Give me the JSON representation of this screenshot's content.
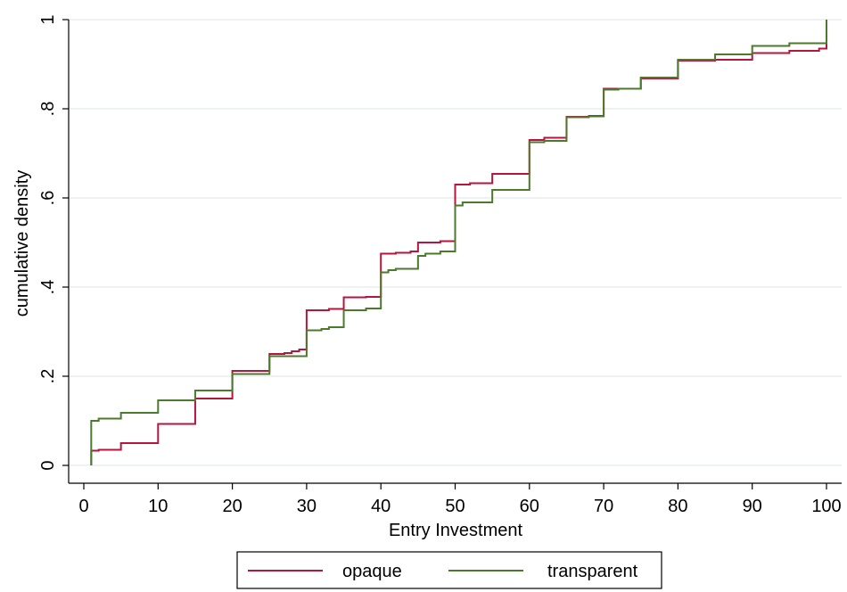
{
  "chart_data": {
    "type": "line",
    "title": "",
    "xlabel": "Entry Investment",
    "ylabel": "cumulative density",
    "xlim": [
      0,
      100
    ],
    "ylim": [
      0,
      1
    ],
    "x_ticks": [
      0,
      10,
      20,
      30,
      40,
      50,
      60,
      70,
      80,
      90,
      100
    ],
    "x_tick_labels": [
      "0",
      "10",
      "20",
      "30",
      "40",
      "50",
      "60",
      "70",
      "80",
      "90",
      "100"
    ],
    "y_ticks": [
      0,
      0.2,
      0.4,
      0.6,
      0.8,
      1
    ],
    "y_tick_labels": [
      "0",
      ".2",
      ".4",
      ".6",
      ".8",
      "1"
    ],
    "grid": true,
    "legend_position": "bottom",
    "series": [
      {
        "name": "opaque",
        "color": "#b5163e",
        "step": true,
        "points": [
          [
            1,
            0
          ],
          [
            1,
            0.033
          ],
          [
            2,
            0.035
          ],
          [
            5,
            0.037
          ],
          [
            5,
            0.05
          ],
          [
            10,
            0.05
          ],
          [
            10,
            0.093
          ],
          [
            15,
            0.095
          ],
          [
            15,
            0.15
          ],
          [
            20,
            0.152
          ],
          [
            20,
            0.212
          ],
          [
            25,
            0.215
          ],
          [
            25,
            0.25
          ],
          [
            27,
            0.252
          ],
          [
            28,
            0.256
          ],
          [
            29,
            0.26
          ],
          [
            30,
            0.262
          ],
          [
            30,
            0.348
          ],
          [
            33,
            0.351
          ],
          [
            35,
            0.352
          ],
          [
            35,
            0.377
          ],
          [
            38,
            0.378
          ],
          [
            40,
            0.38
          ],
          [
            40,
            0.475
          ],
          [
            42,
            0.477
          ],
          [
            44,
            0.48
          ],
          [
            45,
            0.482
          ],
          [
            45,
            0.5
          ],
          [
            48,
            0.503
          ],
          [
            50,
            0.508
          ],
          [
            50,
            0.63
          ],
          [
            52,
            0.633
          ],
          [
            55,
            0.636
          ],
          [
            55,
            0.654
          ],
          [
            60,
            0.655
          ],
          [
            60,
            0.73
          ],
          [
            62,
            0.735
          ],
          [
            65,
            0.737
          ],
          [
            65,
            0.782
          ],
          [
            68,
            0.784
          ],
          [
            70,
            0.785
          ],
          [
            70,
            0.845
          ],
          [
            75,
            0.847
          ],
          [
            75,
            0.868
          ],
          [
            80,
            0.87
          ],
          [
            80,
            0.908
          ],
          [
            85,
            0.91
          ],
          [
            90,
            0.912
          ],
          [
            90,
            0.925
          ],
          [
            95,
            0.93
          ],
          [
            99,
            0.935
          ],
          [
            100,
            0.935
          ],
          [
            100,
            1
          ]
        ]
      },
      {
        "name": "transparent",
        "color": "#4c7a2c",
        "step": true,
        "points": [
          [
            1,
            0
          ],
          [
            1,
            0.1
          ],
          [
            2,
            0.105
          ],
          [
            5,
            0.108
          ],
          [
            5,
            0.118
          ],
          [
            10,
            0.12
          ],
          [
            10,
            0.146
          ],
          [
            15,
            0.148
          ],
          [
            15,
            0.168
          ],
          [
            20,
            0.17
          ],
          [
            20,
            0.205
          ],
          [
            25,
            0.207
          ],
          [
            25,
            0.245
          ],
          [
            30,
            0.248
          ],
          [
            30,
            0.303
          ],
          [
            32,
            0.306
          ],
          [
            33,
            0.31
          ],
          [
            35,
            0.315
          ],
          [
            35,
            0.348
          ],
          [
            38,
            0.352
          ],
          [
            40,
            0.356
          ],
          [
            40,
            0.433
          ],
          [
            41,
            0.438
          ],
          [
            42,
            0.441
          ],
          [
            45,
            0.445
          ],
          [
            45,
            0.47
          ],
          [
            46,
            0.475
          ],
          [
            48,
            0.48
          ],
          [
            50,
            0.482
          ],
          [
            50,
            0.583
          ],
          [
            51,
            0.59
          ],
          [
            55,
            0.593
          ],
          [
            55,
            0.618
          ],
          [
            60,
            0.62
          ],
          [
            60,
            0.725
          ],
          [
            62,
            0.728
          ],
          [
            65,
            0.731
          ],
          [
            65,
            0.781
          ],
          [
            68,
            0.783
          ],
          [
            70,
            0.785
          ],
          [
            70,
            0.843
          ],
          [
            72,
            0.845
          ],
          [
            75,
            0.846
          ],
          [
            75,
            0.87
          ],
          [
            80,
            0.872
          ],
          [
            80,
            0.91
          ],
          [
            85,
            0.912
          ],
          [
            85,
            0.922
          ],
          [
            90,
            0.924
          ],
          [
            90,
            0.941
          ],
          [
            95,
            0.943
          ],
          [
            95,
            0.947
          ],
          [
            100,
            0.948
          ],
          [
            100,
            1
          ]
        ]
      }
    ]
  }
}
